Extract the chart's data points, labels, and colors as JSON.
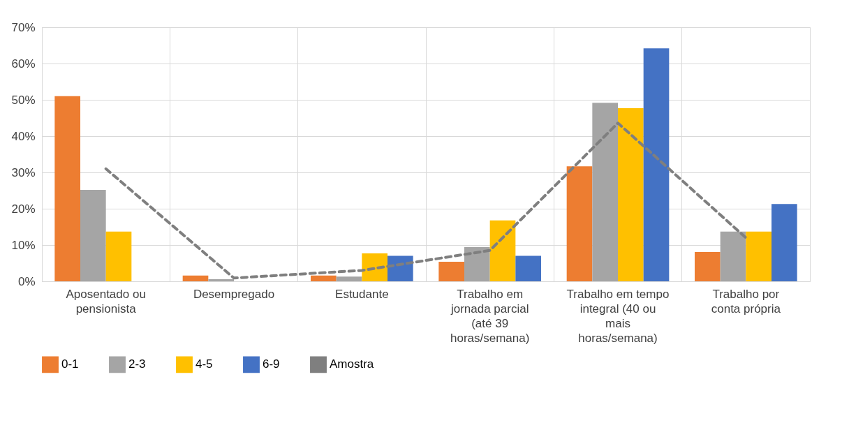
{
  "chart_data": {
    "type": "bar",
    "categories": [
      "Aposentado ou pensionista",
      "Desempregado",
      "Estudante",
      "Trabalho em jornada parcial (até 39 horas/semana)",
      "Trabalho em tempo integral (40 ou mais horas/semana)",
      "Trabalho por conta própria"
    ],
    "series": [
      {
        "name": "0-1",
        "color": "#ed7d31",
        "values": [
          51,
          1.6,
          1.6,
          5.4,
          31.7,
          8.1
        ]
      },
      {
        "name": "2-3",
        "color": "#a5a5a5",
        "values": [
          25.2,
          0.6,
          1.3,
          9.4,
          49.2,
          13.7
        ]
      },
      {
        "name": "4-5",
        "color": "#ffc000",
        "values": [
          13.7,
          0,
          7.7,
          16.8,
          47.7,
          13.7
        ]
      },
      {
        "name": "6-9",
        "color": "#4472c4",
        "values": [
          0,
          0,
          7,
          7,
          64.2,
          21.3
        ]
      },
      {
        "name": "Amostra",
        "type": "line",
        "line_style": "dashed",
        "color": "#7f7f7f",
        "values": [
          31,
          0.9,
          3,
          8.5,
          43.6,
          12
        ]
      }
    ],
    "ylim": [
      0,
      70
    ],
    "yticks": [
      {
        "value": 0,
        "label": "0%"
      },
      {
        "value": 10,
        "label": "10%"
      },
      {
        "value": 20,
        "label": "20%"
      },
      {
        "value": 30,
        "label": "30%"
      },
      {
        "value": 40,
        "label": "40%"
      },
      {
        "value": 50,
        "label": "50%"
      },
      {
        "value": 60,
        "label": "60%"
      },
      {
        "value": 70,
        "label": "70%"
      }
    ],
    "grid": true,
    "legend": "bottom"
  }
}
